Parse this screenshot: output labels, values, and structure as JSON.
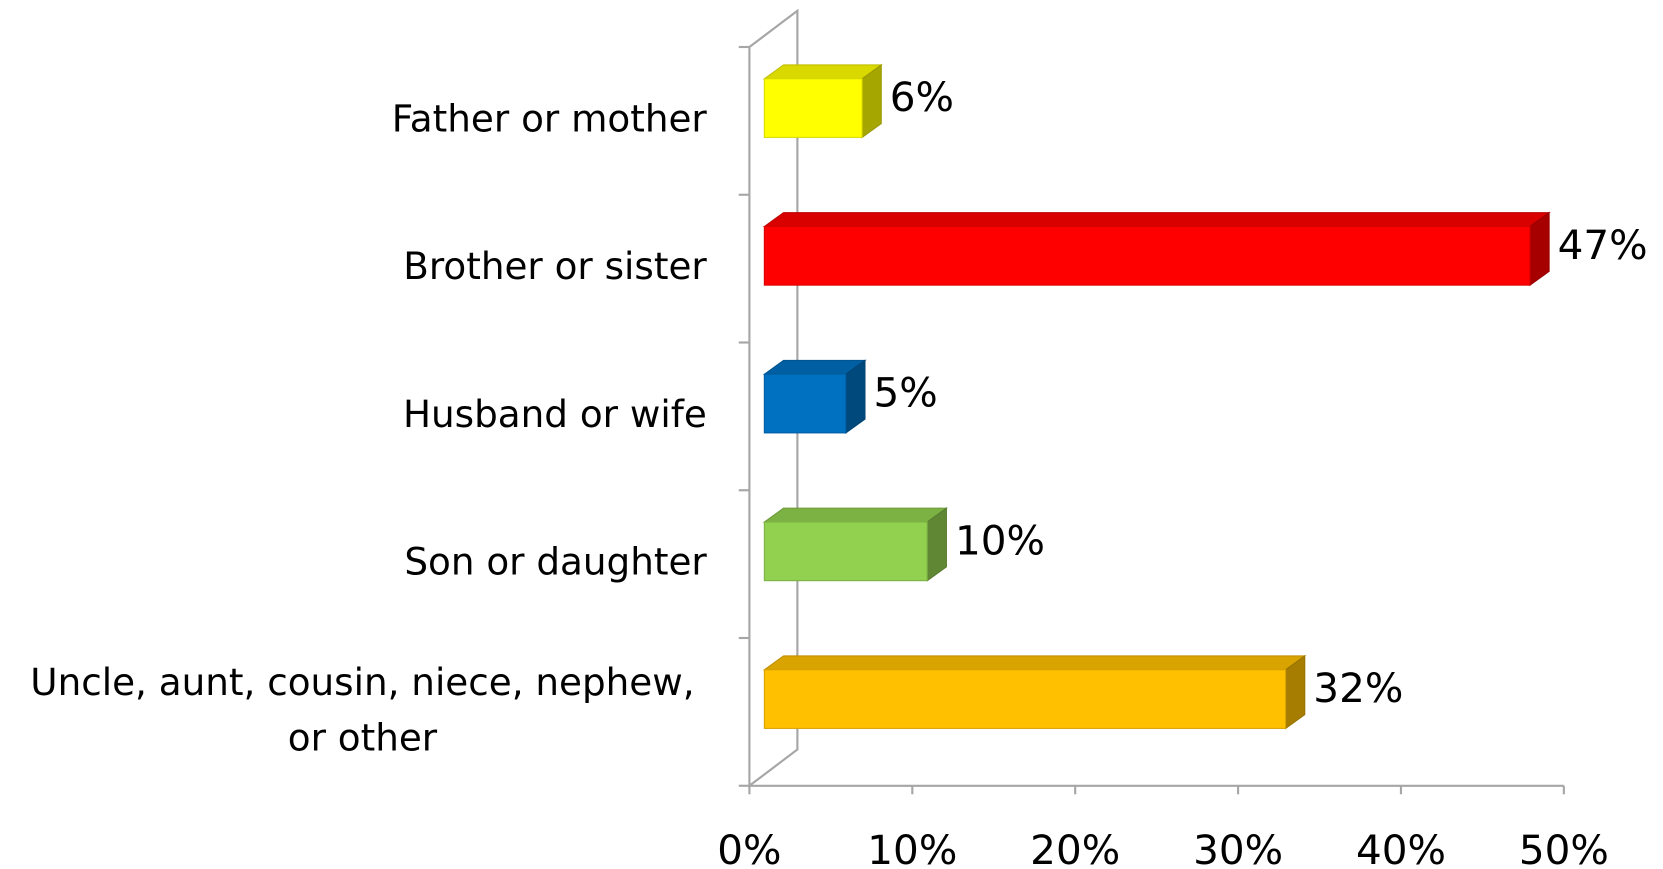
{
  "chart_data": {
    "type": "bar3d_horizontal",
    "categories": [
      "Father or mother",
      "Brother or sister",
      "Husband or wife",
      "Son or daughter",
      "Uncle, aunt, cousin, niece, nephew, or other"
    ],
    "values": [
      6,
      47,
      5,
      10,
      32
    ],
    "value_labels": [
      "6%",
      "47%",
      "5%",
      "10%",
      "32%"
    ],
    "colors": [
      "#ffff00",
      "#ff0000",
      "#0070c0",
      "#92d050",
      "#ffc000"
    ],
    "xlim": [
      0,
      50
    ],
    "xticks": [
      {
        "value": 0,
        "label": "0%"
      },
      {
        "value": 10,
        "label": "10%"
      },
      {
        "value": 20,
        "label": "20%"
      },
      {
        "value": 30,
        "label": "30%"
      },
      {
        "value": 40,
        "label": "40%"
      },
      {
        "value": 50,
        "label": "50%"
      }
    ]
  }
}
